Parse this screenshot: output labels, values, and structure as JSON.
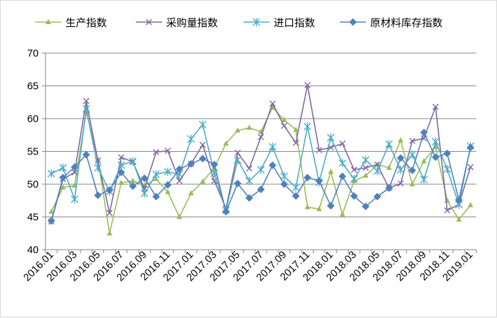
{
  "chart_data": {
    "type": "line",
    "title": "",
    "xlabel": "",
    "ylabel": "",
    "ylim": [
      40,
      70
    ],
    "y_ticks": [
      40,
      45,
      50,
      55,
      60,
      65,
      70
    ],
    "grid": "horizontal",
    "legend_position": "top",
    "x_tick_labels": [
      "2016.01",
      "2016.03",
      "2016.05",
      "2016.07",
      "2016.09",
      "2016.11",
      "2017.01",
      "2017.03",
      "2017.05",
      "2017.07",
      "2017.09",
      "2017.11",
      "2018.01",
      "2018.03",
      "2018.05",
      "2018.07",
      "2018.09",
      "2018.11",
      "2019.01"
    ],
    "x": [
      "2016.01",
      "2016.02",
      "2016.03",
      "2016.04",
      "2016.05",
      "2016.06",
      "2016.07",
      "2016.08",
      "2016.09",
      "2016.10",
      "2016.11",
      "2016.12",
      "2017.01",
      "2017.02",
      "2017.03",
      "2017.04",
      "2017.05",
      "2017.06",
      "2017.07",
      "2017.08",
      "2017.09",
      "2017.10",
      "2017.11",
      "2017.12",
      "2018.01",
      "2018.02",
      "2018.03",
      "2018.04",
      "2018.05",
      "2018.06",
      "2018.07",
      "2018.08",
      "2018.09",
      "2018.10",
      "2018.11",
      "2018.12",
      "2019.01"
    ],
    "series": [
      {
        "name": "生产指数",
        "color": "#9bbb59",
        "marker": "triangle",
        "values": [
          45.8,
          49.5,
          49.8,
          61.1,
          53.8,
          42.5,
          50.2,
          50.5,
          49.8,
          50.8,
          48.8,
          45.0,
          48.6,
          50.4,
          52.5,
          56.2,
          58.2,
          58.6,
          58.0,
          61.7,
          59.8,
          58.3,
          46.5,
          46.2,
          51.9,
          45.4,
          50.5,
          51.3,
          53.0,
          52.5,
          56.7,
          50.0,
          53.5,
          55.7,
          47.5,
          44.6,
          46.8
        ]
      },
      {
        "name": "采购量指数",
        "color": "#8064a2",
        "marker": "x",
        "values": [
          44.3,
          50.8,
          51.8,
          62.7,
          53.6,
          45.6,
          54.1,
          53.4,
          49.3,
          54.9,
          55.1,
          50.5,
          53.1,
          56.0,
          50.5,
          46.3,
          54.8,
          52.4,
          57.2,
          62.3,
          58.9,
          56.3,
          65.1,
          55.2,
          55.6,
          56.2,
          52.2,
          52.5,
          53.0,
          49.4,
          50.1,
          56.6,
          57.0,
          61.8,
          46.0,
          46.9,
          52.6
        ]
      },
      {
        "name": "进口指数",
        "color": "#4bacc6",
        "marker": "star",
        "values": [
          51.6,
          52.5,
          47.7,
          61.5,
          52.5,
          48.9,
          52.9,
          53.5,
          48.6,
          51.5,
          51.9,
          51.5,
          56.9,
          59.1,
          51.7,
          46.0,
          53.7,
          50.5,
          52.2,
          55.7,
          51.2,
          49.5,
          58.8,
          50.3,
          57.1,
          53.2,
          50.8,
          53.7,
          52.0,
          56.1,
          52.2,
          54.5,
          50.7,
          56.5,
          52.3,
          46.9,
          55.8
        ]
      },
      {
        "name": "原材料库存指数",
        "color": "#4f81bd",
        "marker": "diamond",
        "values": [
          44.4,
          51.0,
          52.6,
          54.5,
          48.3,
          49.1,
          51.8,
          49.7,
          50.9,
          48.1,
          49.9,
          52.3,
          53.1,
          53.9,
          53.0,
          45.8,
          50.1,
          47.9,
          49.2,
          52.9,
          50.0,
          48.2,
          51.0,
          50.5,
          46.7,
          51.2,
          48.2,
          46.6,
          48.1,
          49.4,
          54.0,
          52.1,
          57.9,
          54.1,
          54.7,
          47.6,
          55.6
        ]
      }
    ]
  }
}
